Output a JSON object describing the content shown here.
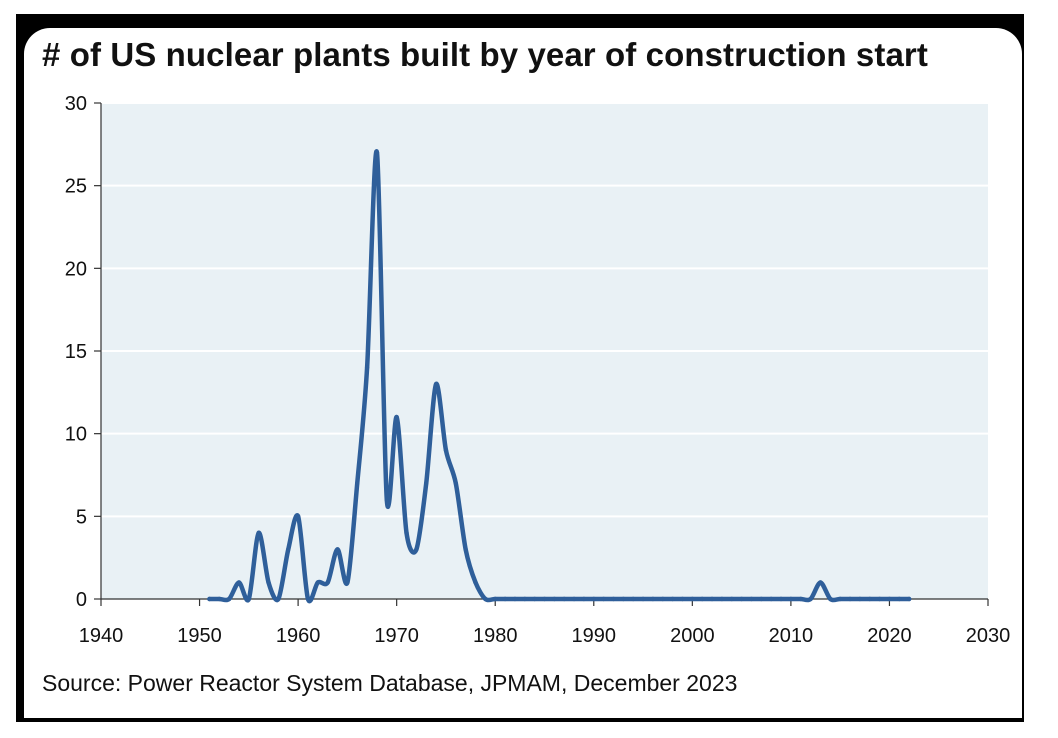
{
  "page": {
    "title": "# of US nuclear plants built by year of construction start",
    "source": "Source: Power Reactor System Database, JPMAM, December 2023"
  },
  "chart_data": {
    "type": "line",
    "title": "# of US nuclear plants built by year of construction start",
    "xlabel": "",
    "ylabel": "",
    "xlim": [
      1940,
      2030
    ],
    "ylim": [
      0,
      30
    ],
    "x_ticks": [
      1940,
      1950,
      1960,
      1970,
      1980,
      1990,
      2000,
      2010,
      2020,
      2030
    ],
    "y_ticks": [
      0,
      5,
      10,
      15,
      20,
      25,
      30
    ],
    "grid": "horizontal",
    "legend": "none",
    "colors": {
      "line": "#2f5f9a",
      "plot_background": "#e9f1f5",
      "gridline": "#ffffff",
      "axis": "#333333"
    },
    "series": [
      {
        "x": [
          1951,
          1952,
          1953,
          1954,
          1955,
          1956,
          1957,
          1958,
          1959,
          1960,
          1961,
          1962,
          1963,
          1964,
          1965,
          1966,
          1967,
          1968,
          1969,
          1970,
          1971,
          1972,
          1973,
          1974,
          1975,
          1976,
          1977,
          1978,
          1979,
          1980,
          1981,
          1982,
          1983,
          1984,
          1985,
          1986,
          1987,
          1988,
          1989,
          1990,
          1991,
          1992,
          1993,
          1994,
          1995,
          1996,
          1997,
          1998,
          1999,
          2000,
          2001,
          2002,
          2003,
          2004,
          2005,
          2006,
          2007,
          2008,
          2009,
          2010,
          2011,
          2012,
          2013,
          2014,
          2015,
          2016,
          2017,
          2018,
          2019,
          2020,
          2021,
          2022
        ],
        "values": [
          0,
          0,
          0,
          1,
          0,
          4,
          1,
          0,
          3,
          5,
          0,
          1,
          1,
          3,
          1,
          7,
          14,
          27,
          6,
          11,
          4,
          3,
          7,
          13,
          9,
          7,
          3,
          1,
          0,
          0,
          0,
          0,
          0,
          0,
          0,
          0,
          0,
          0,
          0,
          0,
          0,
          0,
          0,
          0,
          0,
          0,
          0,
          0,
          0,
          0,
          0,
          0,
          0,
          0,
          0,
          0,
          0,
          0,
          0,
          0,
          0,
          0,
          1,
          0,
          0,
          0,
          0,
          0,
          0,
          0,
          0,
          0
        ]
      }
    ]
  }
}
